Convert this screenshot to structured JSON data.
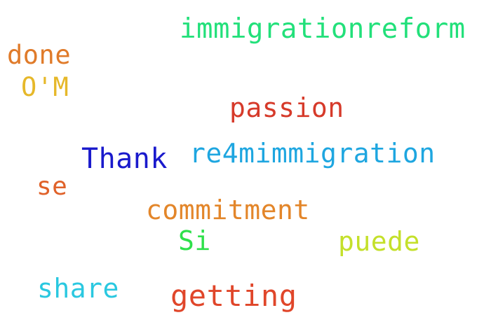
{
  "words": [
    {
      "key": "immigrationreform",
      "text": "immigrationreform",
      "color": "#22e07a"
    },
    {
      "key": "done",
      "text": "done",
      "color": "#e07b2a"
    },
    {
      "key": "om",
      "text": "O'M",
      "color": "#e6b82a"
    },
    {
      "key": "passion",
      "text": "passion",
      "color": "#d63a2a"
    },
    {
      "key": "re4m",
      "text": "re4mimmigration",
      "color": "#1ea6e0"
    },
    {
      "key": "thank",
      "text": "Thank",
      "color": "#1a1acc"
    },
    {
      "key": "se",
      "text": "se",
      "color": "#e0622a"
    },
    {
      "key": "commitment",
      "text": "commitment",
      "color": "#e3862a"
    },
    {
      "key": "si",
      "text": "Si",
      "color": "#2ee04a"
    },
    {
      "key": "puede",
      "text": "puede",
      "color": "#c4e02a"
    },
    {
      "key": "share",
      "text": "share",
      "color": "#2ac8e0"
    },
    {
      "key": "getting",
      "text": "getting",
      "color": "#e0462a"
    }
  ]
}
